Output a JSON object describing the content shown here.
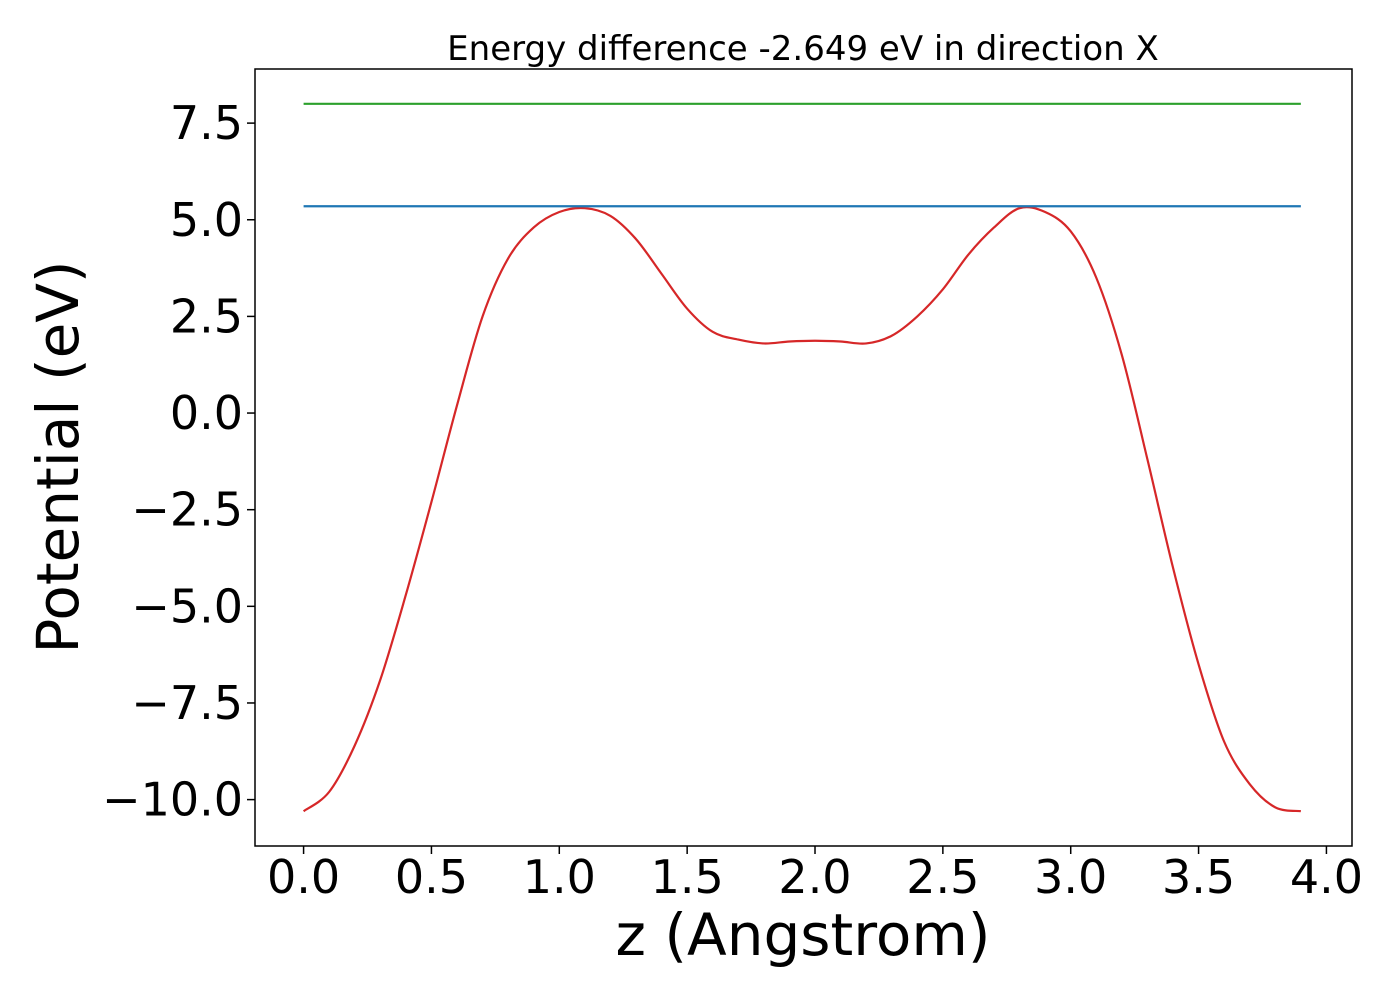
{
  "chart_data": {
    "type": "line",
    "title": "Energy difference -2.649 eV in direction X",
    "xlabel": "z (Angstrom)",
    "ylabel": "Potential (eV)",
    "xlim": [
      -0.19,
      4.1
    ],
    "ylim": [
      -11.2,
      8.9
    ],
    "xticks": [
      0.0,
      0.5,
      1.0,
      1.5,
      2.0,
      2.5,
      3.0,
      3.5,
      4.0
    ],
    "xtick_labels": [
      "0.0",
      "0.5",
      "1.0",
      "1.5",
      "2.0",
      "2.5",
      "3.0",
      "3.5",
      "4.0"
    ],
    "yticks": [
      -10.0,
      -7.5,
      -5.0,
      -2.5,
      0.0,
      2.5,
      5.0,
      7.5
    ],
    "ytick_labels": [
      "−10.0",
      "−7.5",
      "−5.0",
      "−2.5",
      "0.0",
      "2.5",
      "5.0",
      "7.5"
    ],
    "grid": false,
    "series": [
      {
        "color": "#d62728",
        "x": [
          0.0,
          0.1,
          0.2,
          0.3,
          0.4,
          0.5,
          0.6,
          0.7,
          0.8,
          0.9,
          1.0,
          1.1,
          1.2,
          1.3,
          1.4,
          1.5,
          1.6,
          1.7,
          1.8,
          1.9,
          2.0,
          2.1,
          2.2,
          2.3,
          2.4,
          2.5,
          2.6,
          2.7,
          2.8,
          2.9,
          3.0,
          3.1,
          3.2,
          3.3,
          3.4,
          3.5,
          3.6,
          3.7,
          3.8,
          3.9
        ],
        "y": [
          -10.3,
          -9.8,
          -8.6,
          -6.9,
          -4.7,
          -2.3,
          0.2,
          2.5,
          4.0,
          4.8,
          5.2,
          5.3,
          5.1,
          4.5,
          3.6,
          2.7,
          2.1,
          1.9,
          1.8,
          1.85,
          1.87,
          1.85,
          1.8,
          2.0,
          2.5,
          3.2,
          4.1,
          4.8,
          5.3,
          5.2,
          4.7,
          3.5,
          1.5,
          -1.2,
          -4.0,
          -6.5,
          -8.5,
          -9.6,
          -10.2,
          -10.3
        ]
      },
      {
        "color": "#1f77b4",
        "x": [
          0.0,
          3.9
        ],
        "y": [
          5.35,
          5.35
        ]
      },
      {
        "color": "#2ca02c",
        "x": [
          0.0,
          3.9
        ],
        "y": [
          8.0,
          8.0
        ]
      }
    ]
  }
}
